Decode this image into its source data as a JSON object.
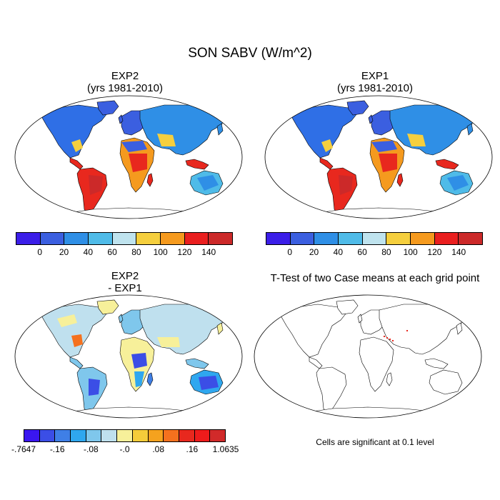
{
  "title": "SON SABV (W/m^2)",
  "panels": {
    "exp2": {
      "line1": "EXP2",
      "line2": "(yrs 1981-2010)"
    },
    "exp1": {
      "line1": "EXP1",
      "line2": "(yrs 1981-2010)"
    },
    "diff": {
      "line1": "EXP2",
      "line2": "- EXP1"
    },
    "ttest": {
      "line1": "T-Test of two Case means at each grid point"
    }
  },
  "colorbar_main": {
    "colors": [
      "#3b1ee8",
      "#3b5fe0",
      "#2f8fe6",
      "#4fbbe8",
      "#bfe3ee",
      "#f5cf3e",
      "#f59a1e",
      "#ea1f1f",
      "#cc2929"
    ],
    "labels": [
      "0",
      "20",
      "40",
      "60",
      "80",
      "100",
      "120",
      "140"
    ]
  },
  "colorbar_diff": {
    "colors": [
      "#3a16f0",
      "#3b4ee6",
      "#3f7fe6",
      "#2fa7ef",
      "#7fc7ec",
      "#bfe0ee",
      "#f7f09a",
      "#f5cc3a",
      "#f5a21e",
      "#f5711e",
      "#e8281e",
      "#ee1b1b",
      "#d12a2a"
    ],
    "labels": [
      "-.7647",
      "-.16",
      "-.08",
      "-.0",
      ".08",
      ".16",
      "1.0635"
    ]
  },
  "note": "Cells are significant at 0.1 level"
}
